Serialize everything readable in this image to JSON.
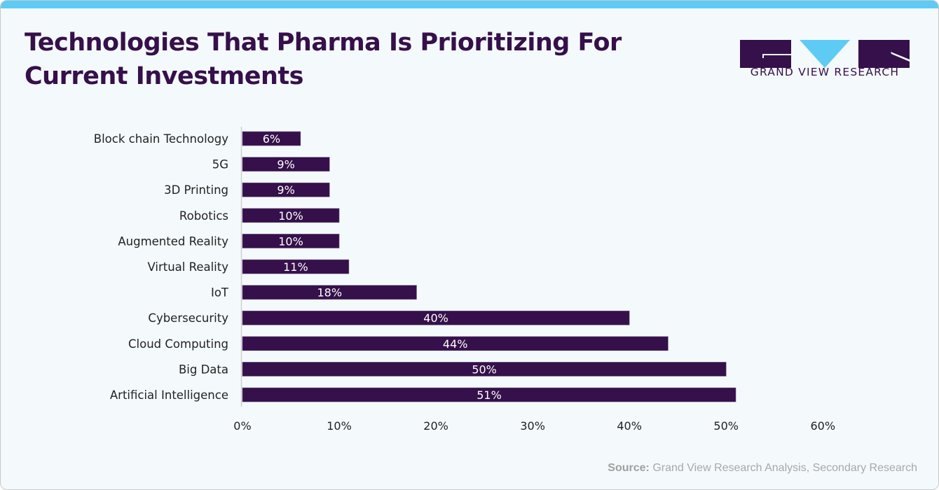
{
  "header": {
    "title_line1": "Technologies That Pharma Is Prioritizing For",
    "title_line2": "Current Investments"
  },
  "logo": {
    "text": "GRAND VIEW RESEARCH",
    "colors": {
      "dark": "#35104a",
      "accent": "#5ecbf5"
    }
  },
  "footer": {
    "source_label": "Source:",
    "source_text": " Grand View Research Analysis, Secondary Research"
  },
  "colors": {
    "bar": "#35104a",
    "topbar": "#5ecbf5",
    "background": "#f4f9fc"
  },
  "chart_data": {
    "type": "bar",
    "orientation": "horizontal",
    "title": "Technologies That Pharma Is Prioritizing For Current Investments",
    "xlabel": "",
    "ylabel": "",
    "categories": [
      "Block chain Technology",
      "5G",
      "3D Printing",
      "Robotics",
      "Augmented Reality",
      "Virtual Reality",
      "IoT",
      "Cybersecurity",
      "Cloud Computing",
      "Big Data",
      "Artificial Intelligence"
    ],
    "values": [
      6,
      9,
      9,
      10,
      10,
      11,
      18,
      40,
      44,
      50,
      51
    ],
    "data_labels": [
      "6%",
      "9%",
      "9%",
      "10%",
      "10%",
      "11%",
      "18%",
      "40%",
      "44%",
      "50%",
      "51%"
    ],
    "xlim": [
      0,
      60
    ],
    "xticks": [
      0,
      10,
      20,
      30,
      40,
      50,
      60
    ],
    "xtick_labels": [
      "0%",
      "10%",
      "20%",
      "30%",
      "40%",
      "50%",
      "60%"
    ],
    "grid": false,
    "legend": "none"
  }
}
